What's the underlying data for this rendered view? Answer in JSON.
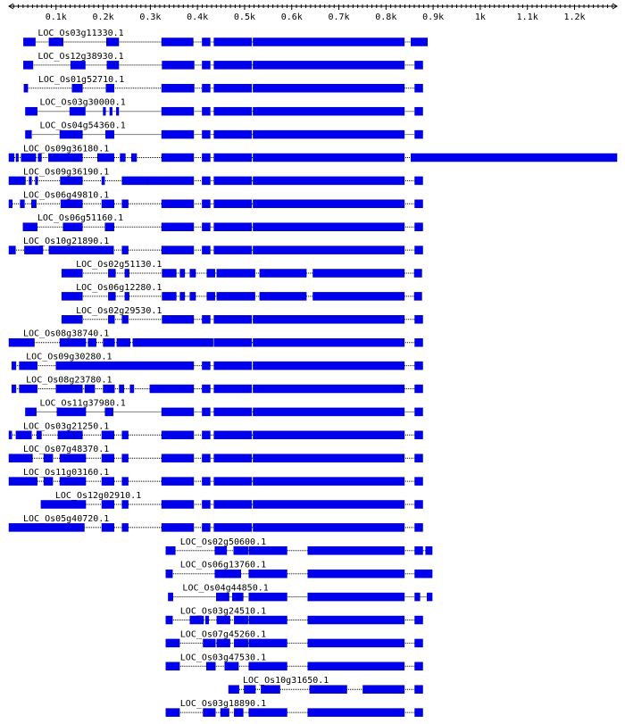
{
  "colors": {
    "exon": "#0000ee",
    "exon_stroke": "#0000aa",
    "intron": "#000000",
    "axis": "#000000"
  },
  "scale": {
    "max_bp": 1290,
    "ticks": [
      {
        "bp": 100,
        "label": "0.1k"
      },
      {
        "bp": 200,
        "label": "0.2k"
      },
      {
        "bp": 300,
        "label": "0.3k"
      },
      {
        "bp": 400,
        "label": "0.4k"
      },
      {
        "bp": 500,
        "label": "0.5k"
      },
      {
        "bp": 600,
        "label": "0.6k"
      },
      {
        "bp": 700,
        "label": "0.7k"
      },
      {
        "bp": 800,
        "label": "0.8k"
      },
      {
        "bp": 900,
        "label": "0.9k"
      },
      {
        "bp": 1000,
        "label": "1k"
      },
      {
        "bp": 1100,
        "label": "1.1k"
      },
      {
        "bp": 1200,
        "label": "1.2k"
      }
    ]
  },
  "genes": [
    {
      "id": "LOC_Os03g11330.1",
      "exons": [
        [
          31,
          56
        ],
        [
          85,
          115
        ],
        [
          207,
          233
        ],
        [
          324,
          391
        ],
        [
          410,
          427
        ],
        [
          435,
          515
        ],
        [
          518,
          839
        ],
        [
          853,
          888
        ]
      ]
    },
    {
      "id": "LOC_Os12g38930.1",
      "exons": [
        [
          31,
          51
        ],
        [
          131,
          162
        ],
        [
          208,
          233
        ],
        [
          325,
          393
        ],
        [
          410,
          427
        ],
        [
          435,
          515
        ],
        [
          518,
          839
        ],
        [
          861,
          878
        ]
      ]
    },
    {
      "id": "LOC_Os01g52710.1",
      "exons": [
        [
          32,
          40
        ],
        [
          134,
          156
        ],
        [
          206,
          223
        ],
        [
          324,
          393
        ],
        [
          410,
          427
        ],
        [
          435,
          515
        ],
        [
          518,
          839
        ],
        [
          861,
          878
        ]
      ]
    },
    {
      "id": "LOC_Os03g30000.1",
      "exons": [
        [
          35,
          60
        ],
        [
          129,
          162
        ],
        [
          200,
          205
        ],
        [
          214,
          219
        ],
        [
          228,
          233
        ],
        [
          324,
          392
        ],
        [
          410,
          427
        ],
        [
          435,
          515
        ],
        [
          518,
          839
        ],
        [
          861,
          878
        ]
      ]
    },
    {
      "id": "LOC_Os04g54360.1",
      "exons": [
        [
          35,
          48
        ],
        [
          108,
          156
        ],
        [
          205,
          223
        ],
        [
          324,
          392
        ],
        [
          410,
          427
        ],
        [
          435,
          515
        ],
        [
          518,
          839
        ],
        [
          861,
          878
        ]
      ]
    },
    {
      "id": "LOC_Os09g36180.1",
      "exons": [
        [
          0,
          11
        ],
        [
          15,
          20
        ],
        [
          26,
          57
        ],
        [
          62,
          69
        ],
        [
          84,
          156
        ],
        [
          188,
          223
        ],
        [
          236,
          247
        ],
        [
          260,
          271
        ],
        [
          324,
          392
        ],
        [
          410,
          427
        ],
        [
          435,
          515
        ],
        [
          518,
          839
        ],
        [
          853,
          1290
        ]
      ]
    },
    {
      "id": "LOC_Os09g36190.1",
      "exons": [
        [
          0,
          35
        ],
        [
          43,
          48
        ],
        [
          56,
          61
        ],
        [
          109,
          156
        ],
        [
          197,
          203
        ],
        [
          240,
          294
        ],
        [
          294,
          392
        ],
        [
          410,
          427
        ],
        [
          435,
          515
        ],
        [
          518,
          839
        ],
        [
          861,
          878
        ]
      ]
    },
    {
      "id": "LOC_Os06g49810.1",
      "exons": [
        [
          0,
          7
        ],
        [
          24,
          33
        ],
        [
          48,
          58
        ],
        [
          110,
          156
        ],
        [
          197,
          223
        ],
        [
          240,
          253
        ],
        [
          324,
          392
        ],
        [
          410,
          427
        ],
        [
          435,
          515
        ],
        [
          518,
          839
        ],
        [
          861,
          878
        ]
      ]
    },
    {
      "id": "LOC_Os06g51160.1",
      "exons": [
        [
          30,
          60
        ],
        [
          115,
          156
        ],
        [
          204,
          223
        ],
        [
          324,
          392
        ],
        [
          410,
          427
        ],
        [
          435,
          515
        ],
        [
          518,
          839
        ],
        [
          861,
          878
        ]
      ]
    },
    {
      "id": "LOC_Os10g21890.1",
      "exons": [
        [
          0,
          14
        ],
        [
          33,
          72
        ],
        [
          85,
          222
        ],
        [
          240,
          253
        ],
        [
          324,
          392
        ],
        [
          410,
          427
        ],
        [
          435,
          515
        ],
        [
          518,
          839
        ],
        [
          861,
          878
        ]
      ]
    },
    {
      "id": "LOC_Os02g51130.1",
      "exons": [
        [
          112,
          156
        ],
        [
          211,
          226
        ],
        [
          246,
          255
        ],
        [
          325,
          355
        ],
        [
          363,
          373
        ],
        [
          384,
          396
        ],
        [
          420,
          437
        ],
        [
          441,
          522
        ],
        [
          532,
          631
        ],
        [
          645,
          839
        ],
        [
          860,
          876
        ]
      ]
    },
    {
      "id": "LOC_Os06g12280.1",
      "exons": [
        [
          112,
          156
        ],
        [
          211,
          226
        ],
        [
          246,
          255
        ],
        [
          325,
          355
        ],
        [
          363,
          373
        ],
        [
          384,
          396
        ],
        [
          420,
          437
        ],
        [
          441,
          522
        ],
        [
          532,
          631
        ],
        [
          645,
          839
        ],
        [
          860,
          876
        ]
      ]
    },
    {
      "id": "LOC_Os02g29530.1",
      "exons": [
        [
          112,
          156
        ],
        [
          211,
          224
        ],
        [
          240,
          253
        ],
        [
          325,
          392
        ],
        [
          410,
          427
        ],
        [
          435,
          515
        ],
        [
          518,
          839
        ],
        [
          861,
          878
        ]
      ]
    },
    {
      "id": "LOC_Os08g38740.1",
      "exons": [
        [
          0,
          54
        ],
        [
          108,
          163
        ],
        [
          168,
          185
        ],
        [
          200,
          224
        ],
        [
          229,
          257
        ],
        [
          263,
          433
        ],
        [
          435,
          515
        ],
        [
          518,
          839
        ],
        [
          861,
          878
        ]
      ]
    },
    {
      "id": "LOC_Os09g30280.1",
      "exons": [
        [
          6,
          15
        ],
        [
          22,
          60
        ],
        [
          100,
          392
        ],
        [
          410,
          427
        ],
        [
          435,
          515
        ],
        [
          518,
          839
        ],
        [
          861,
          878
        ]
      ]
    },
    {
      "id": "LOC_Os08g23780.1",
      "exons": [
        [
          6,
          15
        ],
        [
          22,
          60
        ],
        [
          100,
          156
        ],
        [
          161,
          182
        ],
        [
          200,
          224
        ],
        [
          234,
          244
        ],
        [
          257,
          265
        ],
        [
          299,
          392
        ],
        [
          410,
          427
        ],
        [
          435,
          515
        ],
        [
          518,
          839
        ],
        [
          861,
          878
        ]
      ]
    },
    {
      "id": "LOC_Os11g37980.1",
      "exons": [
        [
          35,
          58
        ],
        [
          102,
          163
        ],
        [
          204,
          221
        ],
        [
          324,
          392
        ],
        [
          410,
          427
        ],
        [
          435,
          515
        ],
        [
          518,
          839
        ],
        [
          861,
          878
        ]
      ]
    },
    {
      "id": "LOC_Os03g21250.1",
      "exons": [
        [
          0,
          6
        ],
        [
          15,
          48
        ],
        [
          59,
          69
        ],
        [
          104,
          156
        ],
        [
          197,
          223
        ],
        [
          240,
          253
        ],
        [
          324,
          392
        ],
        [
          410,
          427
        ],
        [
          435,
          515
        ],
        [
          518,
          839
        ],
        [
          861,
          878
        ]
      ]
    },
    {
      "id": "LOC_Os07g48370.1",
      "exons": [
        [
          0,
          50
        ],
        [
          74,
          93
        ],
        [
          108,
          163
        ],
        [
          197,
          223
        ],
        [
          240,
          253
        ],
        [
          324,
          392
        ],
        [
          410,
          427
        ],
        [
          435,
          515
        ],
        [
          518,
          839
        ],
        [
          861,
          878
        ]
      ]
    },
    {
      "id": "LOC_Os11g03160.1",
      "exons": [
        [
          0,
          60
        ],
        [
          74,
          93
        ],
        [
          108,
          163
        ],
        [
          197,
          223
        ],
        [
          240,
          253
        ],
        [
          324,
          392
        ],
        [
          410,
          427
        ],
        [
          435,
          515
        ],
        [
          518,
          839
        ],
        [
          861,
          878
        ]
      ]
    },
    {
      "id": "LOC_Os12g02910.1",
      "exons": [
        [
          68,
          163
        ],
        [
          197,
          223
        ],
        [
          240,
          253
        ],
        [
          324,
          392
        ],
        [
          410,
          427
        ],
        [
          435,
          515
        ],
        [
          518,
          839
        ],
        [
          861,
          878
        ]
      ]
    },
    {
      "id": "LOC_Os05g40720.1",
      "exons": [
        [
          0,
          160
        ],
        [
          197,
          223
        ],
        [
          240,
          253
        ],
        [
          324,
          392
        ],
        [
          410,
          427
        ],
        [
          435,
          515
        ],
        [
          518,
          839
        ],
        [
          861,
          878
        ]
      ]
    },
    {
      "id": "LOC_Os02g50600.1",
      "exons": [
        [
          333,
          353
        ],
        [
          437,
          462
        ],
        [
          477,
          507
        ],
        [
          509,
          590
        ],
        [
          634,
          839
        ],
        [
          861,
          878
        ],
        [
          884,
          898
        ]
      ]
    },
    {
      "id": "LOC_Os06g13760.1",
      "exons": [
        [
          333,
          347
        ],
        [
          437,
          492
        ],
        [
          509,
          590
        ],
        [
          634,
          839
        ],
        [
          861,
          898
        ]
      ]
    },
    {
      "id": "LOC_Os04g44850.1",
      "exons": [
        [
          338,
          348
        ],
        [
          440,
          467
        ],
        [
          474,
          497
        ],
        [
          509,
          590
        ],
        [
          634,
          839
        ],
        [
          861,
          872
        ],
        [
          887,
          898
        ]
      ]
    },
    {
      "id": "LOC_Os03g24510.1",
      "exons": [
        [
          333,
          347
        ],
        [
          384,
          413
        ],
        [
          417,
          424
        ],
        [
          441,
          469
        ],
        [
          478,
          507
        ],
        [
          509,
          590
        ],
        [
          634,
          839
        ],
        [
          861,
          878
        ]
      ]
    },
    {
      "id": "LOC_Os07g45260.1",
      "exons": [
        [
          333,
          362
        ],
        [
          412,
          438
        ],
        [
          441,
          469
        ],
        [
          478,
          507
        ],
        [
          509,
          590
        ],
        [
          634,
          839
        ],
        [
          861,
          878
        ]
      ]
    },
    {
      "id": "LOC_Os03g47530.1",
      "exons": [
        [
          333,
          362
        ],
        [
          419,
          438
        ],
        [
          458,
          487
        ],
        [
          509,
          590
        ],
        [
          634,
          839
        ],
        [
          861,
          878
        ]
      ]
    },
    {
      "id": "LOC_Os10g31650.1",
      "exons": [
        [
          466,
          488
        ],
        [
          499,
          523
        ],
        [
          535,
          575
        ],
        [
          638,
          717
        ],
        [
          751,
          839
        ],
        [
          861,
          878
        ]
      ]
    },
    {
      "id": "LOC_Os03g18890.1",
      "exons": [
        [
          333,
          362
        ],
        [
          412,
          438
        ],
        [
          449,
          467
        ],
        [
          478,
          497
        ],
        [
          509,
          590
        ],
        [
          634,
          839
        ],
        [
          861,
          878
        ]
      ]
    }
  ]
}
